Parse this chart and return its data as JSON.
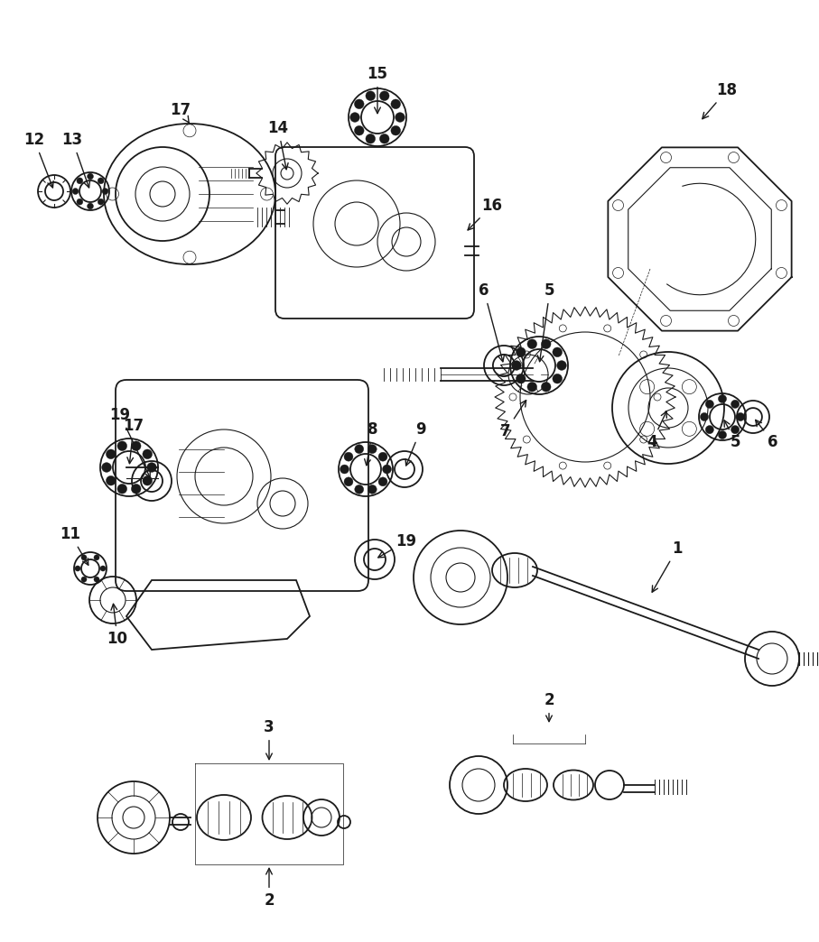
{
  "bg_color": "#ffffff",
  "line_color": "#1a1a1a",
  "figsize": [
    9.07,
    10.44
  ],
  "dpi": 100,
  "components": {
    "label_fontsize": 12,
    "label_fontweight": "bold",
    "arrow_lw": 1.0
  }
}
